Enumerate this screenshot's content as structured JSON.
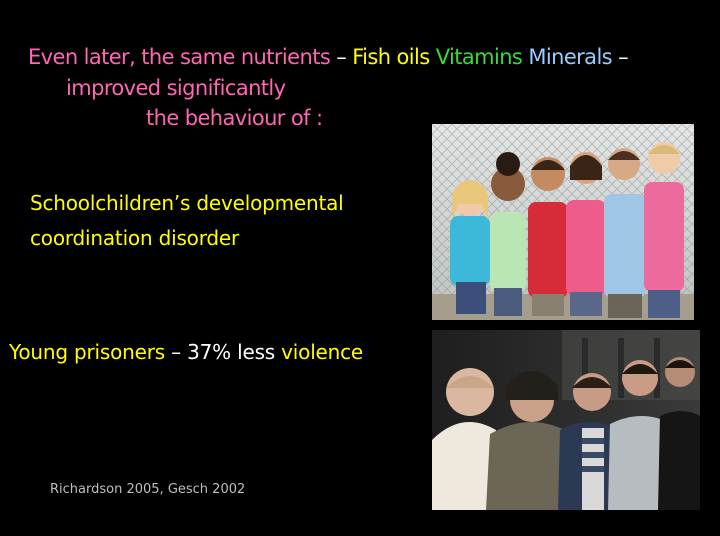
{
  "heading": {
    "line1": {
      "text": "Even later, the same nutrients",
      "dash1": " – ",
      "fish": "Fish oils",
      "vitamins": "Vitamins",
      "minerals": "Minerals",
      "dash2": " –"
    },
    "line2": "improved significantly",
    "line3": "the behaviour of :"
  },
  "points": {
    "schoolchildren": {
      "line1": "Schoolchildren’s developmental",
      "line2": "coordination disorder"
    },
    "prisoners": {
      "label": "Young prisoners",
      "dash": " – ",
      "stat": "37% less",
      "rest": " violence"
    }
  },
  "citation": "Richardson 2005,  Gesch 2002",
  "colors": {
    "background": "#000000",
    "pink": "#ff66b3",
    "yellow": "#ffff00",
    "green": "#33dd33",
    "blue": "#99ccff",
    "white": "#ffffff",
    "citation": "#bfbfbf"
  },
  "images": {
    "children": "group-of-smiling-children-photo",
    "prisoners": "group-of-young-men-photo"
  }
}
